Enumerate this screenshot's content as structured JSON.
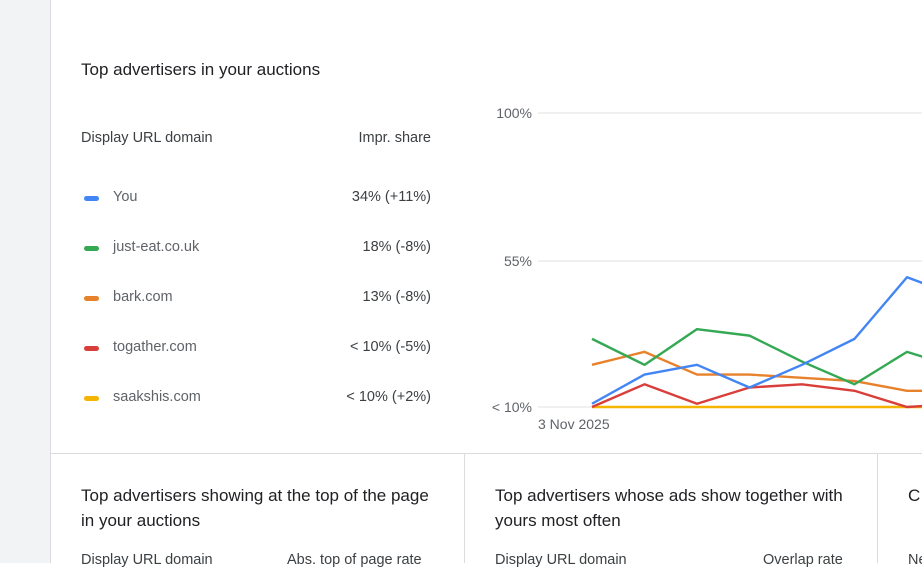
{
  "top_section": {
    "title": "Top advertisers in your auctions",
    "columns": {
      "domain": "Display URL domain",
      "share": "Impr. share"
    },
    "rows": [
      {
        "domain": "You",
        "value": "34% (+11%)",
        "color": "#4285f4"
      },
      {
        "domain": "just-eat.co.uk",
        "value": "18% (-8%)",
        "color": "#34a853"
      },
      {
        "domain": "bark.com",
        "value": "13% (-8%)",
        "color": "#e8812b"
      },
      {
        "domain": "togather.com",
        "value": "< 10% (-5%)",
        "color": "#d93f3a"
      },
      {
        "domain": "saakshis.com",
        "value": "< 10% (+2%)",
        "color": "#f4b400"
      }
    ]
  },
  "chart_data": {
    "type": "line",
    "y_ticks": [
      "100%",
      "55%",
      "< 10%"
    ],
    "x_label_first": "3 Nov 2025",
    "x": [
      0,
      1,
      2,
      3,
      4,
      5,
      6,
      7
    ],
    "ylim": [
      10,
      100
    ],
    "grid": true,
    "series": [
      {
        "name": "You",
        "color": "#4285f4",
        "values": [
          11,
          20,
          23,
          16,
          23,
          31,
          50,
          44
        ]
      },
      {
        "name": "just-eat.co.uk",
        "color": "#34a853",
        "values": [
          31,
          23,
          34,
          32,
          24,
          17,
          27,
          22
        ]
      },
      {
        "name": "bark.com",
        "color": "#e8812b",
        "values": [
          23,
          27,
          20,
          20,
          19,
          18,
          15,
          15
        ]
      },
      {
        "name": "togather.com",
        "color": "#d93f3a",
        "values": [
          10,
          17,
          11,
          16,
          17,
          15,
          10,
          11
        ]
      },
      {
        "name": "saakshis.com",
        "color": "#f4b400",
        "values": [
          10,
          10,
          10,
          10,
          10,
          10,
          10,
          10
        ]
      }
    ]
  },
  "bottom_cards": [
    {
      "title": "Top advertisers showing at the top of the page in your auctions",
      "col1": "Display URL domain",
      "col2": "Abs. top of page rate"
    },
    {
      "title": "Top advertisers whose ads show together with yours most often",
      "col1": "Display URL domain",
      "col2": "Overlap rate"
    },
    {
      "title": "C",
      "col1": "Ne"
    }
  ]
}
